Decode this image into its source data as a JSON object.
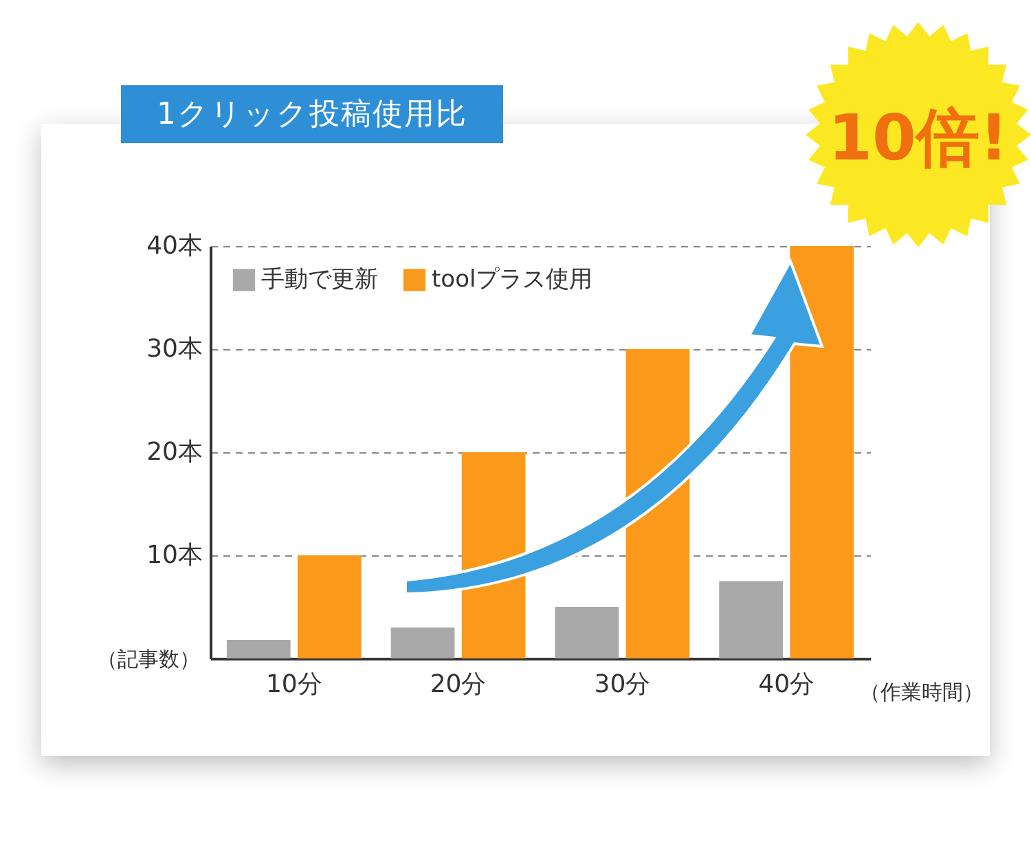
{
  "chart_data": {
    "type": "bar",
    "title": "1クリック投稿使用比",
    "xlabel": "（作業時間）",
    "ylabel": "（記事数）",
    "categories": [
      "10分",
      "20分",
      "30分",
      "40分"
    ],
    "series": [
      {
        "name": "手動で更新",
        "color": "#a9a9a9",
        "values": [
          1.8,
          3,
          5,
          7.5
        ]
      },
      {
        "name": "toolプラス使用",
        "color": "#fb9a1a",
        "values": [
          10,
          20,
          30,
          40
        ]
      }
    ],
    "ylim": [
      0,
      40
    ],
    "yticks": [
      {
        "value": 10,
        "label": "10本"
      },
      {
        "value": 20,
        "label": "20本"
      },
      {
        "value": 30,
        "label": "30本"
      },
      {
        "value": 40,
        "label": "40本"
      }
    ],
    "grid": "y",
    "legend": "top left",
    "annotations": [
      "10倍!"
    ]
  }
}
